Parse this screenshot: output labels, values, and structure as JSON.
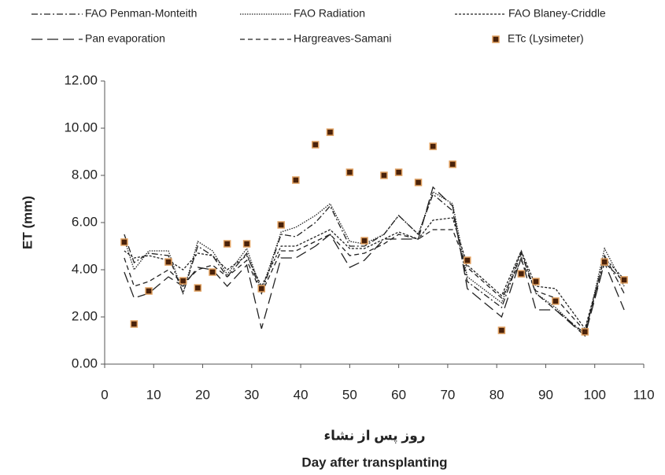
{
  "chart_data": {
    "type": "line",
    "y_label": "ET (mm)",
    "x_label_fa": "روز پس از نشاء",
    "x_label": "Day after transplanting",
    "x": [
      4,
      6,
      9,
      13,
      16,
      19,
      22,
      25,
      29,
      32,
      36,
      39,
      43,
      46,
      50,
      53,
      57,
      60,
      64,
      67,
      71,
      74,
      81,
      85,
      88,
      92,
      98,
      102,
      106
    ],
    "xlim": [
      0,
      110
    ],
    "xticks": [
      0,
      10,
      20,
      30,
      40,
      50,
      60,
      70,
      80,
      90,
      100,
      110
    ],
    "ylim": [
      0,
      12
    ],
    "yticks": [
      {
        "value": 0,
        "label": "0.00"
      },
      {
        "value": 2,
        "label": "2.00"
      },
      {
        "value": 4,
        "label": "4.00"
      },
      {
        "value": 6,
        "label": "6.00"
      },
      {
        "value": 8,
        "label": "8.00"
      },
      {
        "value": 10,
        "label": "10.00"
      },
      {
        "value": 12,
        "label": "12.00"
      }
    ],
    "series": [
      {
        "name": "FAO Penman-Monteith",
        "color": "#222222",
        "style": "dash-dot",
        "values": [
          5.5,
          4.3,
          4.7,
          4.6,
          3.0,
          5.0,
          4.6,
          3.7,
          4.7,
          3.0,
          5.5,
          5.4,
          6.0,
          6.7,
          5.0,
          5.0,
          5.5,
          6.3,
          5.5,
          7.2,
          6.5,
          3.5,
          2.4,
          4.7,
          3.0,
          2.3,
          1.3,
          4.6,
          3.0
        ]
      },
      {
        "name": "FAO Radiation",
        "color": "#222222",
        "style": "dotted",
        "values": [
          5.3,
          4.0,
          4.8,
          4.8,
          3.0,
          5.2,
          4.8,
          3.8,
          4.9,
          3.1,
          5.6,
          5.8,
          6.3,
          6.8,
          5.2,
          5.1,
          5.5,
          6.3,
          5.5,
          7.3,
          6.8,
          3.7,
          2.6,
          4.8,
          3.0,
          2.4,
          1.2,
          4.9,
          3.3
        ]
      },
      {
        "name": "FAO Blaney-Criddle",
        "color": "#222222",
        "style": "fine-dash",
        "values": [
          4.8,
          4.5,
          4.6,
          4.4,
          4.0,
          4.7,
          4.6,
          4.0,
          4.6,
          3.3,
          5.0,
          5.0,
          5.4,
          5.7,
          4.9,
          4.9,
          5.3,
          5.6,
          5.3,
          6.1,
          6.2,
          4.2,
          2.9,
          4.8,
          3.3,
          3.2,
          1.5,
          4.5,
          3.6
        ]
      },
      {
        "name": "Pan evaporation",
        "color": "#222222",
        "style": "long-dash",
        "values": [
          3.9,
          2.8,
          3.0,
          3.7,
          3.3,
          4.1,
          4.0,
          3.3,
          4.2,
          1.5,
          4.5,
          4.5,
          5.0,
          5.5,
          4.1,
          4.4,
          5.3,
          5.3,
          5.3,
          7.5,
          6.7,
          3.2,
          2.0,
          4.5,
          2.3,
          2.3,
          1.2,
          4.3,
          2.3
        ]
      },
      {
        "name": "Hargreaves-Samani",
        "color": "#222222",
        "style": "dash",
        "values": [
          4.5,
          3.3,
          3.5,
          4.0,
          3.4,
          4.0,
          4.2,
          3.7,
          4.4,
          3.0,
          4.8,
          4.8,
          5.2,
          5.5,
          4.6,
          4.7,
          5.1,
          5.5,
          5.3,
          5.7,
          5.7,
          4.1,
          2.8,
          4.4,
          3.1,
          2.8,
          1.4,
          4.3,
          3.5
        ]
      },
      {
        "name": "ETc (Lysimeter)",
        "color": "#4a220a",
        "style": "scatter",
        "values": [
          5.17,
          1.7,
          3.1,
          4.33,
          3.53,
          3.23,
          3.9,
          5.1,
          5.1,
          3.2,
          5.9,
          7.8,
          9.3,
          9.83,
          8.13,
          5.23,
          8.0,
          8.13,
          7.7,
          9.23,
          8.47,
          4.4,
          1.43,
          3.83,
          3.5,
          2.67,
          1.37,
          4.33,
          3.57
        ]
      }
    ]
  }
}
